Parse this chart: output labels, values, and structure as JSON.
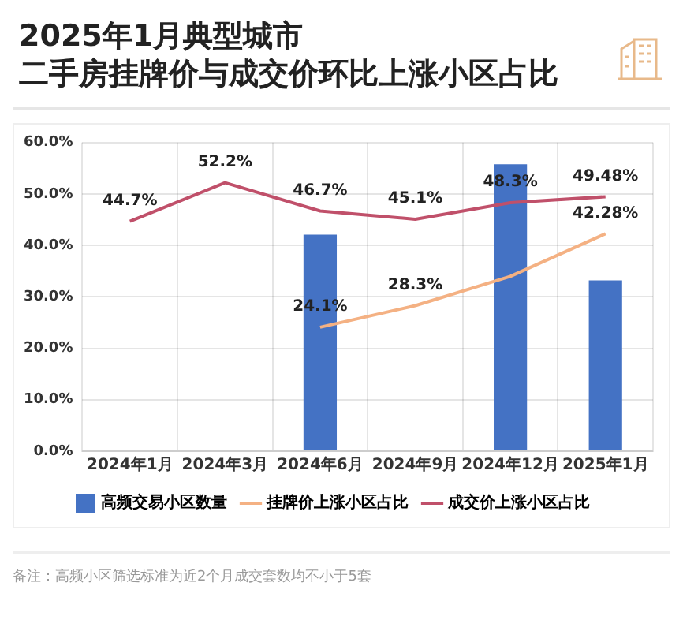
{
  "chart_data": {
    "type": "bar",
    "title": "2025年1月典型城市",
    "subtitle": "二手房挂牌价与成交价环比上涨小区占比",
    "categories": [
      "2024年1月",
      "2024年3月",
      "2024年6月",
      "2024年9月",
      "2024年12月",
      "2025年1月"
    ],
    "series": [
      {
        "name": "高频交易小区数量",
        "color": "#4472c4",
        "values": [
          null,
          null,
          42.1,
          null,
          55.8,
          33.2
        ]
      },
      {
        "name": "挂牌价上涨小区占比",
        "type": "line",
        "color": "#f4b183",
        "values": [
          null,
          null,
          24.1,
          28.3,
          34,
          42.28
        ],
        "value_labels": [
          null,
          null,
          "24.1%",
          "28.3%",
          null,
          "42.28%"
        ]
      },
      {
        "name": "成交价上涨小区占比",
        "type": "line",
        "color": "#c0506a",
        "values": [
          44.7,
          52.2,
          46.7,
          45.1,
          48.3,
          49.48
        ],
        "value_labels": [
          "44.7%",
          "52.2%",
          "46.7%",
          "45.1%",
          "48.3%",
          "49.48%"
        ]
      }
    ],
    "ylim": [
      0,
      60
    ],
    "yticks": [
      {
        "value": 0,
        "label": "0.0%"
      },
      {
        "value": 10,
        "label": "10.0%"
      },
      {
        "value": 20,
        "label": "20.0%"
      },
      {
        "value": 30,
        "label": "30.0%"
      },
      {
        "value": 40,
        "label": "40.0%"
      },
      {
        "value": 50,
        "label": "50.0%"
      },
      {
        "value": 60,
        "label": "60.0%"
      }
    ],
    "grid": true,
    "legend": "bottom",
    "marker": "none",
    "annotations": [
      "备注：高频小区筛选标准为近2个月成交套数均不小于5套"
    ]
  }
}
